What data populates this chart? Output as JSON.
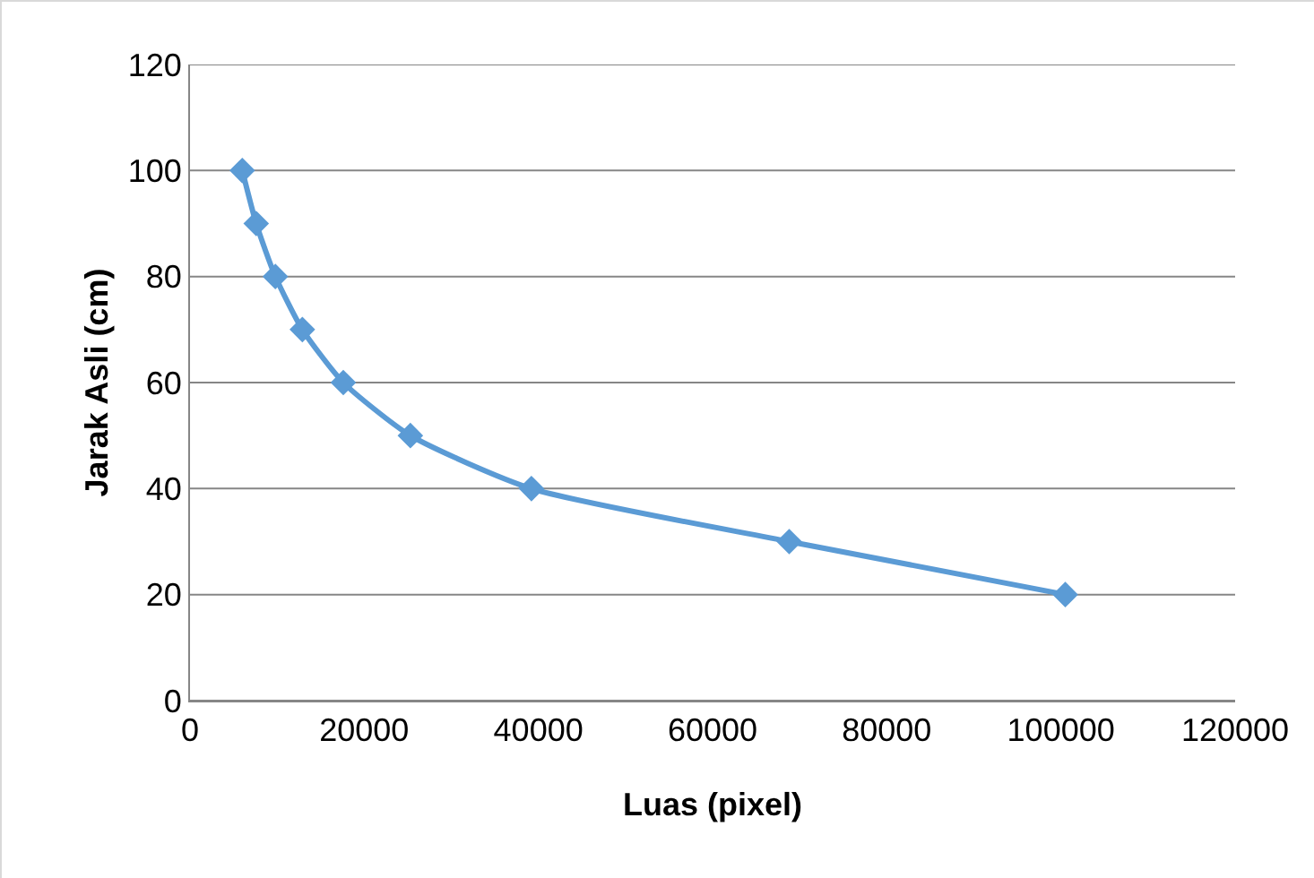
{
  "chart_data": {
    "type": "line",
    "xlabel": "Luas (pixel)",
    "ylabel": "Jarak Asli (cm)",
    "x": [
      6000,
      7600,
      9800,
      12900,
      17600,
      25300,
      39200,
      68800,
      100500
    ],
    "series": [
      {
        "color": "#5b9bd5",
        "values": [
          100,
          90,
          80,
          70,
          60,
          50,
          40,
          30,
          20
        ]
      }
    ],
    "xlim": [
      0,
      120000
    ],
    "xticks": [
      0,
      20000,
      40000,
      60000,
      80000,
      100000,
      120000
    ],
    "ylim": [
      0,
      120
    ],
    "yticks": [
      0,
      20,
      40,
      60,
      80,
      100,
      120
    ],
    "grid": "y",
    "marker": "diamond",
    "line_style": "solid"
  }
}
